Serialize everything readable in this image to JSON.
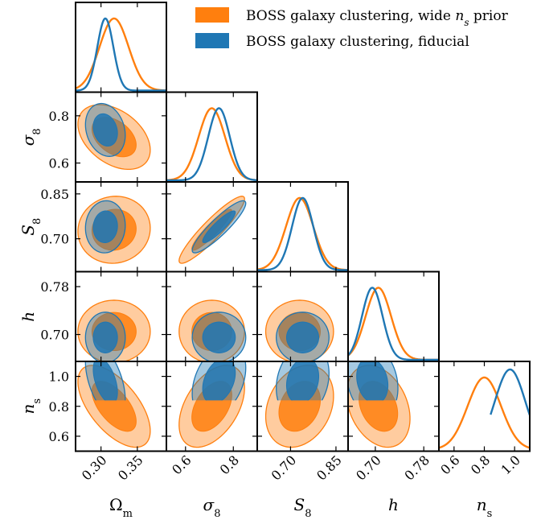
{
  "chart_data": {
    "type": "corner",
    "parameters": [
      {
        "key": "om",
        "label": "Ω",
        "sub": "m",
        "range": [
          0.265,
          0.39
        ],
        "ticks": [
          0.3,
          0.35
        ],
        "tick_labels": [
          "0.30",
          "0.35"
        ]
      },
      {
        "key": "s8",
        "label": "σ",
        "sub": "8",
        "range": [
          0.52,
          0.9
        ],
        "ticks": [
          0.6,
          0.8
        ],
        "tick_labels": [
          "0.6",
          "0.8"
        ]
      },
      {
        "key": "S8",
        "label": "S",
        "sub": "8",
        "range": [
          0.59,
          0.89
        ],
        "ticks": [
          0.7,
          0.85
        ],
        "tick_labels": [
          "0.70",
          "0.85"
        ]
      },
      {
        "key": "h",
        "label": "h",
        "sub": "",
        "range": [
          0.655,
          0.805
        ],
        "ticks": [
          0.7,
          0.78
        ],
        "tick_labels": [
          "0.70",
          "0.78"
        ]
      },
      {
        "key": "ns",
        "label": "n",
        "sub": "s",
        "range": [
          0.5,
          1.1
        ],
        "ticks": [
          0.6,
          0.8,
          1.0
        ],
        "tick_labels": [
          "0.6",
          "0.8",
          "1.0"
        ]
      }
    ],
    "legend": {
      "placement": "top-right",
      "entries": [
        {
          "name_pre": "BOSS galaxy clustering, wide ",
          "name_it": "n",
          "name_sub": "s",
          "name_post": " prior",
          "color": "#ff7f0e"
        },
        {
          "name_pre": "BOSS galaxy clustering, fiducial",
          "name_it": "",
          "name_sub": "",
          "name_post": "",
          "color": "#1f77b4"
        }
      ]
    },
    "series": [
      {
        "name": "wide",
        "color": "#ff7f0e",
        "mean": {
          "om": 0.318,
          "s8": 0.71,
          "S8": 0.73,
          "h": 0.705,
          "ns": 0.8
        },
        "sigma": {
          "om": 0.02,
          "s8": 0.055,
          "S8": 0.045,
          "h": 0.021,
          "ns": 0.11
        },
        "corr": {
          "om-s8": -0.4,
          "om-S8": 0.05,
          "om-h": 0.0,
          "om-ns": -0.6,
          "s8-S8": 0.92,
          "s8-h": 0.0,
          "S8-h": 0.0,
          "s8-ns": 0.45,
          "S8-ns": 0.25,
          "h-ns": -0.3
        },
        "truncate_ns": null
      },
      {
        "name": "fiducial",
        "color": "#1f77b4",
        "mean": {
          "om": 0.306,
          "s8": 0.74,
          "S8": 0.74,
          "h": 0.695,
          "ns": 0.97
        },
        "sigma": {
          "om": 0.011,
          "s8": 0.045,
          "S8": 0.035,
          "h": 0.017,
          "ns": 0.1
        },
        "corr": {
          "om-s8": -0.2,
          "om-S8": 0.05,
          "om-h": 0.0,
          "om-ns": -0.5,
          "s8-S8": 0.9,
          "s8-h": 0.0,
          "S8-h": 0.0,
          "s8-ns": 0.35,
          "S8-ns": 0.2,
          "h-ns": -0.2
        },
        "truncate_ns": 0.84
      }
    ]
  }
}
